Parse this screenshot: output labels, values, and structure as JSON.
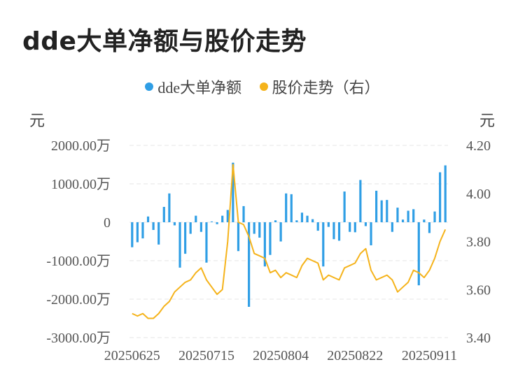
{
  "title": "dde大单净额与股价走势",
  "legend": {
    "bar_label": "dde大单净额",
    "line_label": "股价走势（右）"
  },
  "units": {
    "left": "元",
    "right": "元"
  },
  "colors": {
    "bar": "#2f9ee5",
    "line": "#f5b31b",
    "grid": "#e6e6e6"
  },
  "chart_data": {
    "type": "bar",
    "title": "dde大单净额与股价走势",
    "legend_position": "top",
    "grid": true,
    "left_axis": {
      "ylim": [
        -3000,
        2000
      ],
      "ticks": [
        2000,
        1000,
        0,
        -1000,
        -2000,
        -3000
      ],
      "tick_labels": [
        "2000.00万",
        "1000.00万",
        "0",
        "-1000.00万",
        "-2000.00万",
        "-3000.00万"
      ]
    },
    "right_axis": {
      "ylim": [
        3.4,
        4.2
      ],
      "ticks": [
        4.2,
        4.0,
        3.8,
        3.6,
        3.4
      ],
      "tick_labels": [
        "4.20",
        "4.00",
        "3.80",
        "3.60",
        "3.40"
      ]
    },
    "x_tick_labels": [
      "20250625",
      "20250715",
      "20250804",
      "20250822",
      "20250911"
    ],
    "x_tick_indices": [
      0,
      14,
      28,
      42,
      56
    ],
    "series": [
      {
        "name": "dde大单净额",
        "type": "bar",
        "axis": "left",
        "values": [
          -650,
          -520,
          -420,
          150,
          -200,
          -580,
          400,
          750,
          -80,
          -1180,
          -820,
          -300,
          170,
          -250,
          -1050,
          20,
          -50,
          170,
          320,
          1550,
          -750,
          420,
          -2200,
          -300,
          -400,
          -1150,
          -850,
          50,
          -500,
          750,
          730,
          50,
          250,
          170,
          80,
          -220,
          -1150,
          -120,
          -440,
          -480,
          800,
          -250,
          -260,
          1100,
          -100,
          -600,
          820,
          570,
          580,
          -250,
          380,
          70,
          300,
          340,
          -1640,
          70,
          -280,
          280,
          1300,
          1480
        ],
        "unit": "万"
      },
      {
        "name": "股价走势（右）",
        "type": "line",
        "axis": "right",
        "values": [
          3.5,
          3.49,
          3.5,
          3.48,
          3.48,
          3.5,
          3.53,
          3.55,
          3.59,
          3.61,
          3.63,
          3.64,
          3.67,
          3.69,
          3.64,
          3.61,
          3.58,
          3.6,
          3.8,
          4.12,
          3.88,
          3.87,
          3.82,
          3.75,
          3.74,
          3.73,
          3.67,
          3.68,
          3.65,
          3.67,
          3.66,
          3.65,
          3.7,
          3.73,
          3.72,
          3.71,
          3.64,
          3.66,
          3.65,
          3.64,
          3.69,
          3.7,
          3.71,
          3.75,
          3.77,
          3.68,
          3.64,
          3.65,
          3.66,
          3.64,
          3.59,
          3.61,
          3.63,
          3.68,
          3.67,
          3.65,
          3.68,
          3.73,
          3.8,
          3.85
        ]
      }
    ]
  }
}
